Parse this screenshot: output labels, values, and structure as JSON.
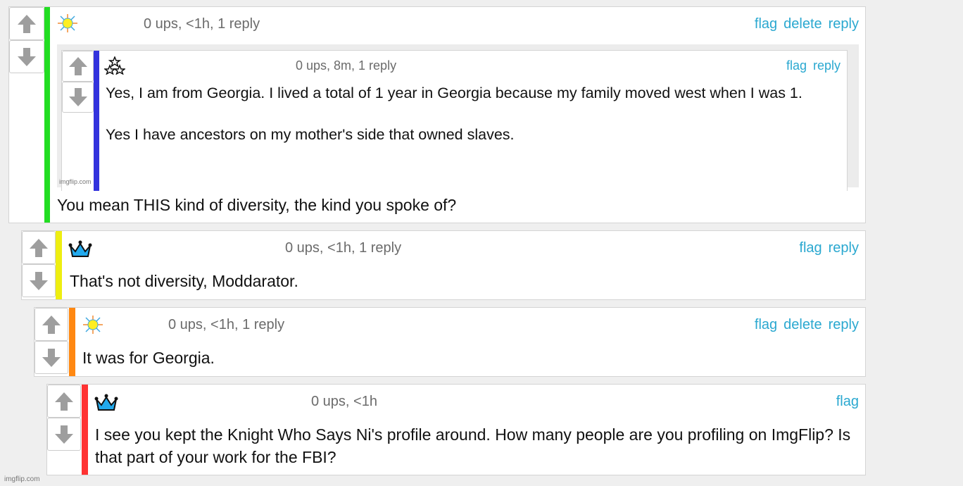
{
  "colors": {
    "link": "#2aa8d0",
    "meta": "#6b6b6b",
    "depth_bars": [
      "#22dd22",
      "#3333dd",
      "#eeee11",
      "#ff8811",
      "#ff3333"
    ]
  },
  "comments": [
    {
      "icon": "sun-icon",
      "meta": "0 ups, <1h, 1 reply",
      "links": [
        "flag",
        "delete",
        "reply"
      ],
      "text": "You mean THIS kind of diversity, the kind you spoke of?",
      "embedded_image": {
        "icon": "stars-icon",
        "meta": "0 ups, 8m, 1 reply",
        "links": [
          "flag",
          "reply"
        ],
        "text": "Yes, I am from Georgia. I lived a total of 1 year in Georgia because my family moved west when I was 1.\n\nYes I have ancestors on my mother's side that owned slaves.",
        "watermark": "imgflip.com"
      }
    },
    {
      "icon": "crown-icon",
      "meta": "0 ups, <1h, 1 reply",
      "links": [
        "flag",
        "reply"
      ],
      "text": "That's not diversity, Moddarator."
    },
    {
      "icon": "sun-icon",
      "meta": "0 ups, <1h, 1 reply",
      "links": [
        "flag",
        "delete",
        "reply"
      ],
      "text": "It was for Georgia."
    },
    {
      "icon": "crown-icon",
      "meta": "0 ups, <1h",
      "links": [
        "flag"
      ],
      "text": "I see you kept the Knight Who Says Ni's profile around. How many people are you profiling on ImgFlip? Is that part of your work for the FBI?"
    }
  ],
  "watermark": "imgflip.com"
}
